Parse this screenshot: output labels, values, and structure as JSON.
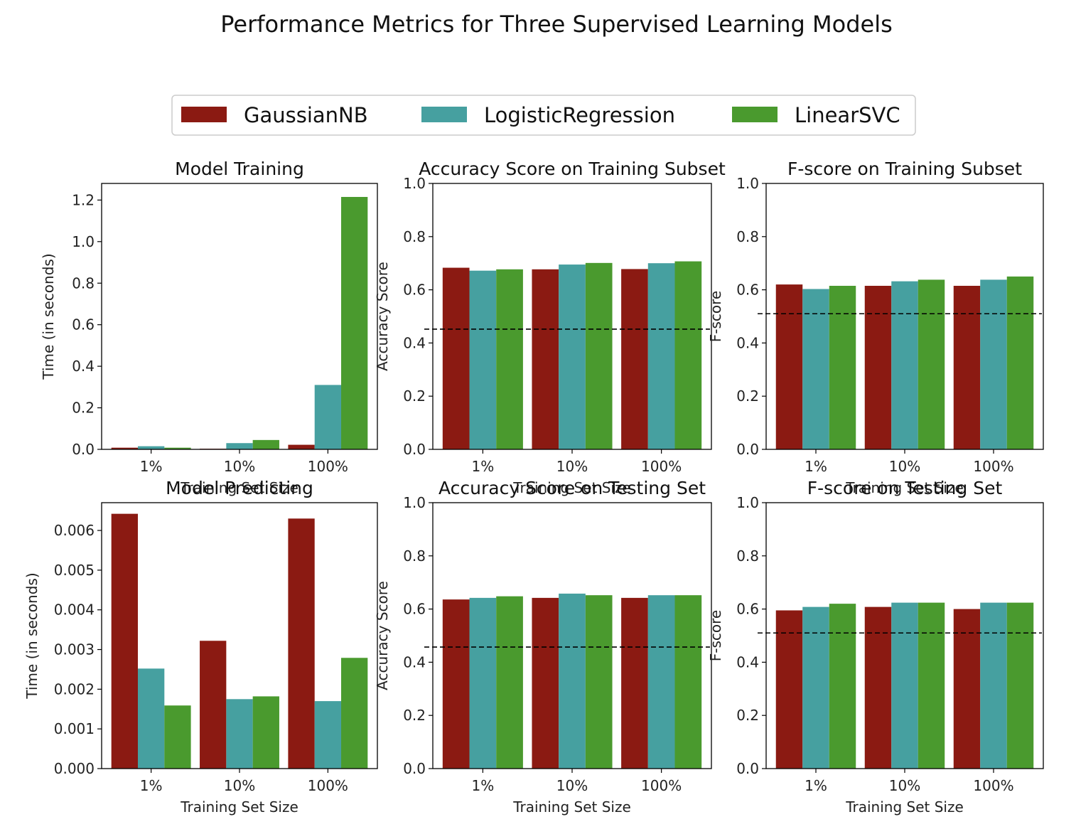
{
  "title": "Performance Metrics for Three Supervised Learning Models",
  "legend": [
    {
      "label": "GaussianNB",
      "color": "#8b1a12"
    },
    {
      "label": "LogisticRegression",
      "color": "#46a0a0"
    },
    {
      "label": "LinearSVC",
      "color": "#4a9a2e"
    }
  ],
  "chart_data": [
    {
      "type": "bar",
      "title": "Model Training",
      "xlabel": "Training Set Size",
      "ylabel": "Time (in seconds)",
      "categories": [
        "1%",
        "10%",
        "100%"
      ],
      "ylim": [
        0,
        1.28
      ],
      "yticks": [
        "0.0",
        "0.2",
        "0.4",
        "0.6",
        "0.8",
        "1.0",
        "1.2"
      ],
      "series": [
        {
          "name": "GaussianNB",
          "values": [
            0.008,
            0.003,
            0.022
          ]
        },
        {
          "name": "LogisticRegression",
          "values": [
            0.015,
            0.03,
            0.31
          ]
        },
        {
          "name": "LinearSVC",
          "values": [
            0.008,
            0.045,
            1.215
          ]
        }
      ]
    },
    {
      "type": "bar",
      "title": "Accuracy Score on Training Subset",
      "xlabel": "Training Set Size",
      "ylabel": "Accuracy Score",
      "categories": [
        "1%",
        "10%",
        "100%"
      ],
      "ylim": [
        0,
        1.0
      ],
      "yticks": [
        "0.0",
        "0.2",
        "0.4",
        "0.6",
        "0.8",
        "1.0"
      ],
      "baseline": 0.452,
      "series": [
        {
          "name": "GaussianNB",
          "values": [
            0.683,
            0.677,
            0.678
          ]
        },
        {
          "name": "LogisticRegression",
          "values": [
            0.672,
            0.695,
            0.7
          ]
        },
        {
          "name": "LinearSVC",
          "values": [
            0.677,
            0.701,
            0.707
          ]
        }
      ]
    },
    {
      "type": "bar",
      "title": "F-score on Training Subset",
      "xlabel": "Training Set Size",
      "ylabel": "F-score",
      "categories": [
        "1%",
        "10%",
        "100%"
      ],
      "ylim": [
        0,
        1.0
      ],
      "yticks": [
        "0.0",
        "0.2",
        "0.4",
        "0.6",
        "0.8",
        "1.0"
      ],
      "baseline": 0.51,
      "series": [
        {
          "name": "GaussianNB",
          "values": [
            0.62,
            0.615,
            0.615
          ]
        },
        {
          "name": "LogisticRegression",
          "values": [
            0.603,
            0.632,
            0.638
          ]
        },
        {
          "name": "LinearSVC",
          "values": [
            0.615,
            0.638,
            0.65
          ]
        }
      ]
    },
    {
      "type": "bar",
      "title": "Model Predicting",
      "xlabel": "Training Set Size",
      "ylabel": "Time (in seconds)",
      "categories": [
        "1%",
        "10%",
        "100%"
      ],
      "ylim": [
        0,
        0.0067
      ],
      "yticks": [
        "0.000",
        "0.001",
        "0.002",
        "0.003",
        "0.004",
        "0.005",
        "0.006"
      ],
      "series": [
        {
          "name": "GaussianNB",
          "values": [
            0.00642,
            0.00322,
            0.0063
          ]
        },
        {
          "name": "LogisticRegression",
          "values": [
            0.00252,
            0.00175,
            0.0017
          ]
        },
        {
          "name": "LinearSVC",
          "values": [
            0.00159,
            0.00182,
            0.00279
          ]
        }
      ]
    },
    {
      "type": "bar",
      "title": "Accuracy Score on Testing Set",
      "xlabel": "Training Set Size",
      "ylabel": "Accuracy Score",
      "categories": [
        "1%",
        "10%",
        "100%"
      ],
      "ylim": [
        0,
        1.0
      ],
      "yticks": [
        "0.0",
        "0.2",
        "0.4",
        "0.6",
        "0.8",
        "1.0"
      ],
      "baseline": 0.457,
      "series": [
        {
          "name": "GaussianNB",
          "values": [
            0.636,
            0.642,
            0.642
          ]
        },
        {
          "name": "LogisticRegression",
          "values": [
            0.642,
            0.658,
            0.652
          ]
        },
        {
          "name": "LinearSVC",
          "values": [
            0.648,
            0.652,
            0.652
          ]
        }
      ]
    },
    {
      "type": "bar",
      "title": "F-score on Testing Set",
      "xlabel": "Training Set Size",
      "ylabel": "F-score",
      "categories": [
        "1%",
        "10%",
        "100%"
      ],
      "ylim": [
        0,
        1.0
      ],
      "yticks": [
        "0.0",
        "0.2",
        "0.4",
        "0.6",
        "0.8",
        "1.0"
      ],
      "baseline": 0.51,
      "series": [
        {
          "name": "GaussianNB",
          "values": [
            0.595,
            0.608,
            0.6
          ]
        },
        {
          "name": "LogisticRegression",
          "values": [
            0.608,
            0.624,
            0.624
          ]
        },
        {
          "name": "LinearSVC",
          "values": [
            0.62,
            0.624,
            0.624
          ]
        }
      ]
    }
  ]
}
